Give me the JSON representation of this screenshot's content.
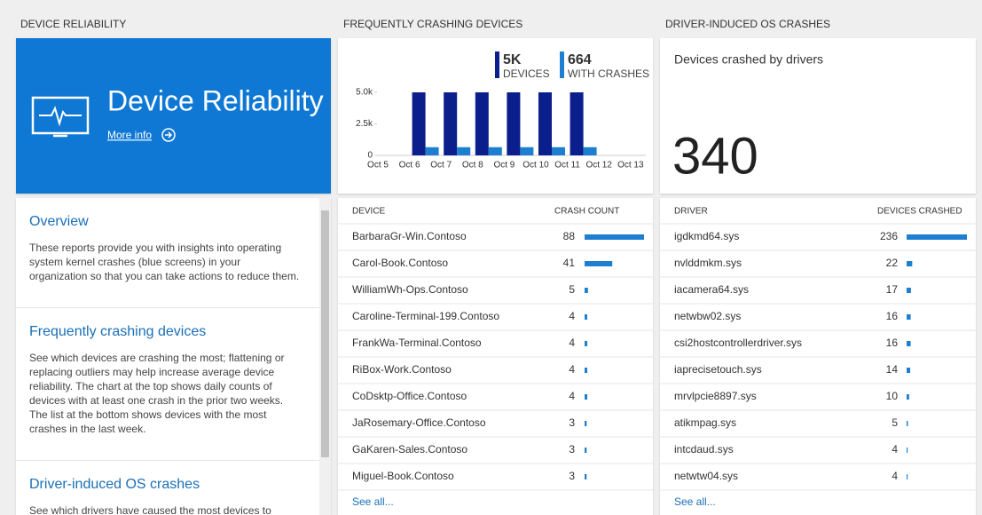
{
  "column_headers": [
    "DEVICE RELIABILITY",
    "FREQUENTLY CRASHING DEVICES",
    "DRIVER-INDUCED OS CRASHES"
  ],
  "tile": {
    "title": "Device Reliability",
    "link": "More info"
  },
  "overview": [
    {
      "heading": "Overview",
      "text": "These reports provide you with insights into operating system kernel crashes (blue screens) in your organization so that you can take actions to reduce them."
    },
    {
      "heading": "Frequently crashing devices",
      "text": "See which devices are crashing the most; flattening or replacing outliers may help increase average device reliability. The chart at the top shows daily counts of devices with at least one crash in the prior two weeks. The list at the bottom shows devices with the most crashes in the last week."
    },
    {
      "heading": "Driver-induced OS crashes",
      "text": "See which drivers have caused the most devices to crash in"
    }
  ],
  "chart_data": {
    "type": "bar",
    "categories": [
      "Oct 5",
      "Oct 6",
      "Oct 7",
      "Oct 8",
      "Oct 9",
      "Oct 10",
      "Oct 11",
      "Oct 12",
      "Oct 13"
    ],
    "series": [
      {
        "name": "DEVICES",
        "total": "5K",
        "color": "#0a1e8c",
        "values": [
          null,
          5000,
          5000,
          5000,
          5000,
          5000,
          5000,
          null,
          null
        ]
      },
      {
        "name": "WITH CRASHES",
        "total": "664",
        "color": "#1e7fd0",
        "values": [
          null,
          650,
          650,
          650,
          650,
          650,
          650,
          null,
          null
        ]
      }
    ],
    "ylim": [
      0,
      5000
    ],
    "yticks": [
      0,
      {
        "value": 2500,
        "label": "2.5k"
      },
      {
        "value": 5000,
        "label": "5.0k"
      }
    ]
  },
  "devices_table": {
    "columns": [
      "DEVICE",
      "CRASH COUNT"
    ],
    "rows": [
      [
        "BarbaraGr-Win.Contoso",
        88
      ],
      [
        "Carol-Book.Contoso",
        41
      ],
      [
        "WilliamWh-Ops.Contoso",
        5
      ],
      [
        "Caroline-Terminal-199.Contoso",
        4
      ],
      [
        "FrankWa-Terminal.Contoso",
        4
      ],
      [
        "RiBox-Work.Contoso",
        4
      ],
      [
        "CoDsktp-Office.Contoso",
        4
      ],
      [
        "JaRosemary-Office.Contoso",
        3
      ],
      [
        "GaKaren-Sales.Contoso",
        3
      ],
      [
        "Miguel-Book.Contoso",
        3
      ]
    ],
    "link": "See all..."
  },
  "driver_panel": {
    "caption": "Devices crashed by drivers",
    "value": 340
  },
  "drivers_table": {
    "columns": [
      "DRIVER",
      "DEVICES CRASHED"
    ],
    "rows": [
      [
        "igdkmd64.sys",
        236
      ],
      [
        "nvlddmkm.sys",
        22
      ],
      [
        "iacamera64.sys",
        17
      ],
      [
        "netwbw02.sys",
        16
      ],
      [
        "csi2hostcontrollerdriver.sys",
        16
      ],
      [
        "iaprecisetouch.sys",
        14
      ],
      [
        "mrvlpcie8897.sys",
        10
      ],
      [
        "atikmpag.sys",
        5
      ],
      [
        "intcdaud.sys",
        4
      ],
      [
        "netwtw04.sys",
        4
      ]
    ],
    "link": "See all..."
  }
}
